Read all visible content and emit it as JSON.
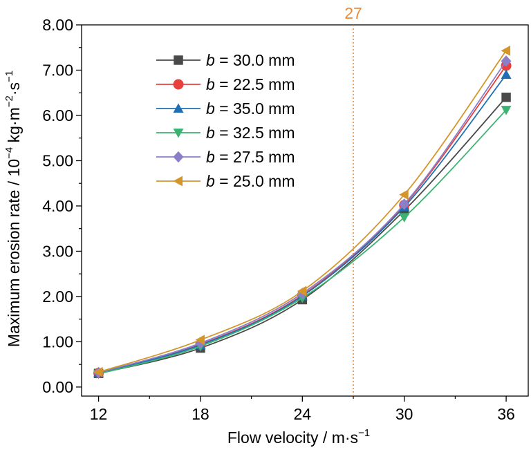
{
  "chart_data": {
    "type": "line",
    "xlabel": "Flow velocity / m·s",
    "xlabel_sup": "−1",
    "ylabel_main": "Maximum erosion rate / 10",
    "ylabel_sup1": "−4",
    "ylabel_mid": " kg·m",
    "ylabel_sup2": "−2",
    "ylabel_mid2": "·s",
    "ylabel_sup3": "−1",
    "x_ticks": [
      "12",
      "18",
      "24",
      "30",
      "36"
    ],
    "y_ticks": [
      "0.00",
      "1.00",
      "2.00",
      "3.00",
      "4.00",
      "5.00",
      "6.00",
      "7.00",
      "8.00"
    ],
    "xlim": [
      11,
      37.3
    ],
    "ylim": [
      -0.2,
      8.0
    ],
    "grid": false,
    "legend_position": "top-left",
    "reference_line": {
      "x": 27,
      "label": "27",
      "color": "#e8893a"
    },
    "x": [
      12,
      18,
      24,
      30,
      36
    ],
    "series": [
      {
        "name_var": "b",
        "name_rest": " = 30.0 mm",
        "marker": "square",
        "color": "#4a4a4a",
        "values": [
          0.3,
          0.86,
          1.93,
          3.9,
          6.4
        ]
      },
      {
        "name_var": "b",
        "name_rest": " = 22.5 mm",
        "marker": "circle",
        "color": "#e8413c",
        "values": [
          0.31,
          0.94,
          2.03,
          4.02,
          7.1
        ]
      },
      {
        "name_var": "b",
        "name_rest": " = 35.0 mm",
        "marker": "triangle-up",
        "color": "#1f6fb5",
        "values": [
          0.31,
          0.93,
          2.01,
          3.98,
          6.9
        ]
      },
      {
        "name_var": "b",
        "name_rest": " = 32.5 mm",
        "marker": "triangle-down",
        "color": "#3cb371",
        "values": [
          0.29,
          0.9,
          1.97,
          3.75,
          6.12
        ]
      },
      {
        "name_var": "b",
        "name_rest": " = 27.5 mm",
        "marker": "diamond",
        "color": "#8a7fc8",
        "values": [
          0.32,
          0.97,
          2.07,
          4.04,
          7.2
        ]
      },
      {
        "name_var": "b",
        "name_rest": " = 25.0 mm",
        "marker": "triangle-left",
        "color": "#d4962a",
        "values": [
          0.33,
          1.04,
          2.12,
          4.25,
          7.43
        ]
      }
    ]
  }
}
